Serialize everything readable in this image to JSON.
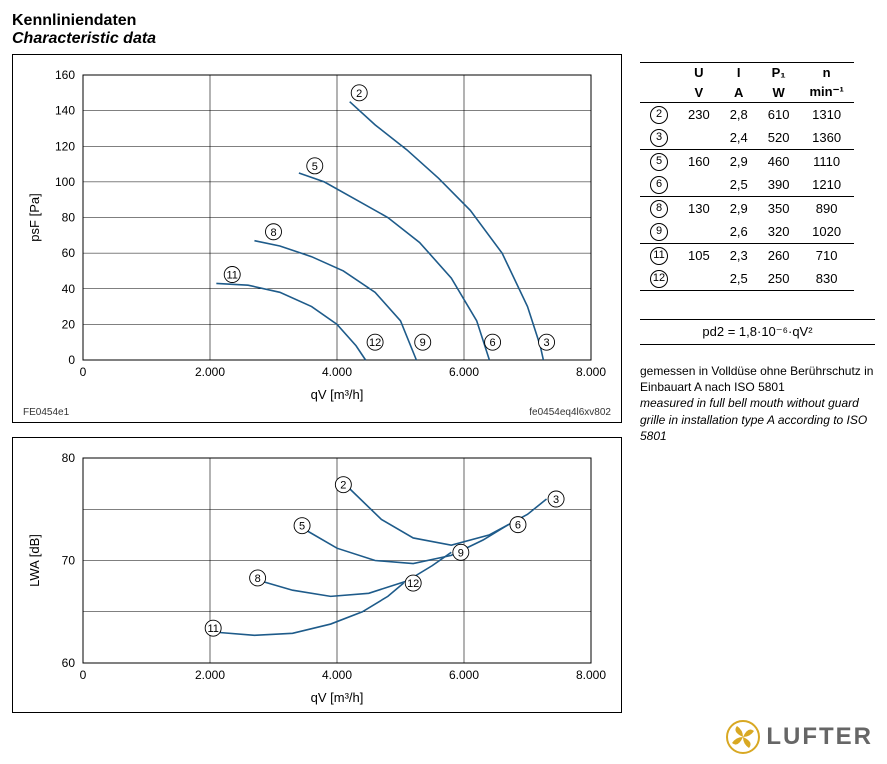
{
  "titles": {
    "de": "Kennliniendaten",
    "en": "Characteristic data"
  },
  "chart1": {
    "type": "line",
    "xlabel": "qV [m³/h]",
    "ylabel": "psF [Pa]",
    "xlim": [
      0,
      8000
    ],
    "ylim": [
      0,
      160
    ],
    "xticks": [
      0,
      2000,
      4000,
      6000,
      8000
    ],
    "xticklabels": [
      "0",
      "2.000",
      "4.000",
      "6.000",
      "8.000"
    ],
    "yticks": [
      0,
      20,
      40,
      60,
      80,
      100,
      120,
      140,
      160
    ],
    "line_color": "#1e5b8a",
    "grid_color": "#000000",
    "background_color": "#ffffff",
    "line_width": 1.6,
    "curves": {
      "2": {
        "label_xy": [
          4350,
          150
        ],
        "pts": [
          [
            4200,
            145
          ],
          [
            4600,
            132
          ],
          [
            5100,
            118
          ],
          [
            5600,
            102
          ],
          [
            6100,
            84
          ],
          [
            6600,
            60
          ],
          [
            7000,
            30
          ],
          [
            7200,
            8
          ],
          [
            7250,
            0
          ]
        ]
      },
      "3": {
        "label_xy": [
          7300,
          10
        ]
      },
      "5": {
        "pts": [
          [
            3400,
            105
          ],
          [
            3800,
            100
          ],
          [
            4300,
            90
          ],
          [
            4800,
            80
          ],
          [
            5300,
            66
          ],
          [
            5800,
            46
          ],
          [
            6200,
            22
          ],
          [
            6400,
            0
          ]
        ],
        "label_xy": [
          3650,
          109
        ]
      },
      "6": {
        "label_xy": [
          6450,
          10
        ]
      },
      "8": {
        "pts": [
          [
            2700,
            67
          ],
          [
            3100,
            64
          ],
          [
            3600,
            58
          ],
          [
            4100,
            50
          ],
          [
            4600,
            38
          ],
          [
            5000,
            22
          ],
          [
            5250,
            0
          ]
        ],
        "label_xy": [
          3000,
          72
        ]
      },
      "9": {
        "label_xy": [
          5350,
          10
        ]
      },
      "11": {
        "pts": [
          [
            2100,
            43
          ],
          [
            2600,
            42
          ],
          [
            3100,
            38
          ],
          [
            3600,
            30
          ],
          [
            4000,
            20
          ],
          [
            4300,
            8
          ],
          [
            4450,
            0
          ]
        ],
        "label_xy": [
          2350,
          48
        ]
      },
      "12": {
        "label_xy": [
          4600,
          10
        ]
      }
    },
    "footer_left": "FE0454e1",
    "footer_right": "fe0454eq4l6xv802"
  },
  "chart2": {
    "type": "line",
    "xlabel": "qV [m³/h]",
    "ylabel": "LWA [dB]",
    "xlim": [
      0,
      8000
    ],
    "ylim": [
      60,
      80
    ],
    "xticks": [
      0,
      2000,
      4000,
      6000,
      8000
    ],
    "xticklabels": [
      "0",
      "2.000",
      "4.000",
      "6.000",
      "8.000"
    ],
    "yticks": [
      60,
      65,
      70,
      75,
      80
    ],
    "yticklabels": [
      "60",
      "",
      "70",
      "",
      "80"
    ],
    "line_color": "#1e5b8a",
    "grid_color": "#000000",
    "line_width": 1.6,
    "curves": {
      "2": {
        "pts": [
          [
            4200,
            77.0
          ],
          [
            4700,
            74.0
          ],
          [
            5200,
            72.2
          ],
          [
            5800,
            71.5
          ],
          [
            6400,
            72.5
          ],
          [
            7000,
            74.5
          ],
          [
            7300,
            76.0
          ]
        ],
        "label_xy": [
          4100,
          77.4
        ]
      },
      "3": {
        "label_xy": [
          7450,
          76.0
        ]
      },
      "5": {
        "pts": [
          [
            3500,
            73.0
          ],
          [
            4000,
            71.2
          ],
          [
            4600,
            70.0
          ],
          [
            5200,
            69.7
          ],
          [
            5800,
            70.5
          ],
          [
            6300,
            72.0
          ],
          [
            6700,
            73.5
          ]
        ],
        "label_xy": [
          3450,
          73.4
        ]
      },
      "6": {
        "label_xy": [
          6850,
          73.5
        ]
      },
      "8": {
        "pts": [
          [
            2800,
            68.0
          ],
          [
            3300,
            67.1
          ],
          [
            3900,
            66.5
          ],
          [
            4500,
            66.8
          ],
          [
            5100,
            68.0
          ],
          [
            5500,
            69.5
          ],
          [
            5800,
            70.8
          ]
        ],
        "label_xy": [
          2750,
          68.3
        ]
      },
      "9": {
        "label_xy": [
          5950,
          70.8
        ]
      },
      "11": {
        "pts": [
          [
            2100,
            63.0
          ],
          [
            2700,
            62.7
          ],
          [
            3300,
            62.9
          ],
          [
            3900,
            63.8
          ],
          [
            4400,
            65.0
          ],
          [
            4800,
            66.5
          ],
          [
            5050,
            67.8
          ]
        ],
        "label_xy": [
          2050,
          63.4
        ]
      },
      "12": {
        "label_xy": [
          5200,
          67.8
        ]
      }
    }
  },
  "table": {
    "headers1": [
      "",
      "U",
      "I",
      "P₁",
      "n"
    ],
    "headers2": [
      "",
      "V",
      "A",
      "W",
      "min⁻¹"
    ],
    "rows": [
      {
        "id": "2",
        "u": "230",
        "i": "2,8",
        "p": "610",
        "n": "1310",
        "sep": false
      },
      {
        "id": "3",
        "u": "",
        "i": "2,4",
        "p": "520",
        "n": "1360",
        "sep": true
      },
      {
        "id": "5",
        "u": "160",
        "i": "2,9",
        "p": "460",
        "n": "1110",
        "sep": false
      },
      {
        "id": "6",
        "u": "",
        "i": "2,5",
        "p": "390",
        "n": "1210",
        "sep": true
      },
      {
        "id": "8",
        "u": "130",
        "i": "2,9",
        "p": "350",
        "n": "890",
        "sep": false
      },
      {
        "id": "9",
        "u": "",
        "i": "2,6",
        "p": "320",
        "n": "1020",
        "sep": true
      },
      {
        "id": "11",
        "u": "105",
        "i": "2,3",
        "p": "260",
        "n": "710",
        "sep": false
      },
      {
        "id": "12",
        "u": "",
        "i": "2,5",
        "p": "250",
        "n": "830",
        "sep": false
      }
    ]
  },
  "formula": "pd2 = 1,8·10⁻⁶·qV²",
  "note_de": "gemessen in Volldüse ohne Berührschutz in Einbauart A nach ISO 5801",
  "note_en": "measured in full bell mouth without guard grille in installation type A according to ISO 5801",
  "logo_text": "LUFTER",
  "logo_color": "#d8a823"
}
